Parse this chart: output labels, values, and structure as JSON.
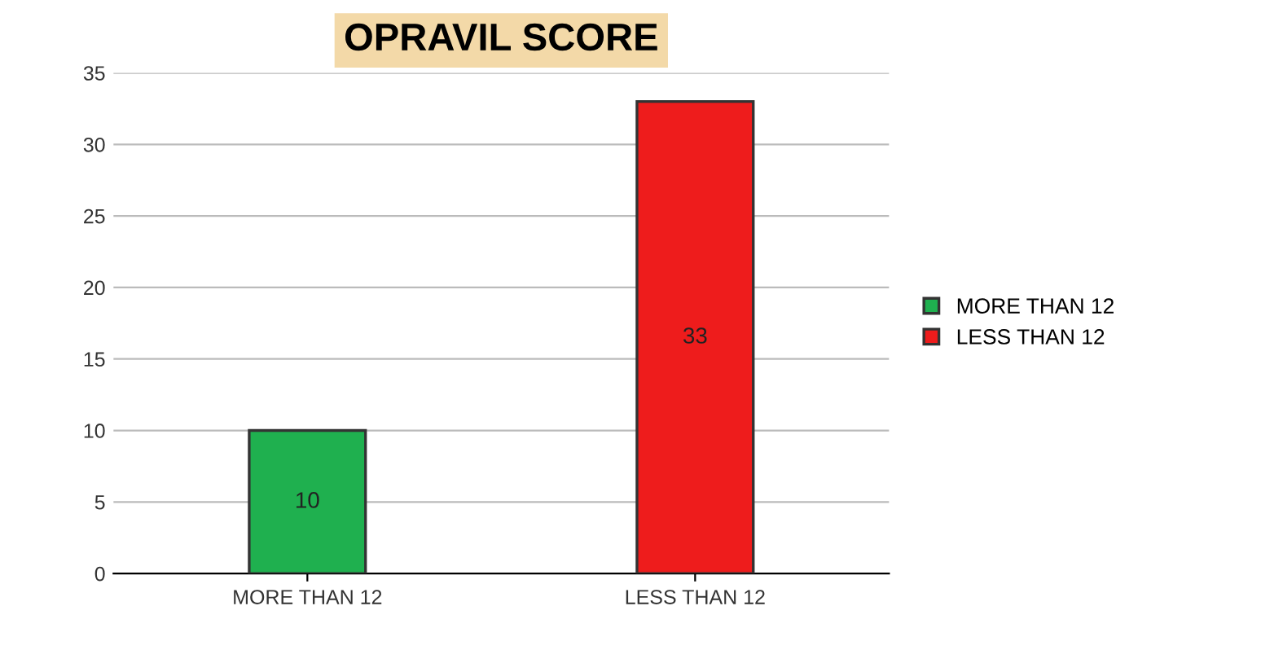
{
  "chart_data": {
    "type": "bar",
    "title": "OPRAVIL SCORE",
    "categories": [
      "MORE THAN 12",
      "LESS THAN 12"
    ],
    "series": [
      {
        "name": "MORE THAN 12",
        "color": "#1fb04f",
        "values": [
          10,
          null
        ]
      },
      {
        "name": "LESS THAN 12",
        "color": "#ee1c1c",
        "values": [
          null,
          33
        ]
      }
    ],
    "ylim": [
      0,
      35
    ],
    "yticks": [
      0,
      5,
      10,
      15,
      20,
      25,
      30,
      35
    ],
    "grid": "y",
    "legend": "right",
    "data_labels": true
  }
}
